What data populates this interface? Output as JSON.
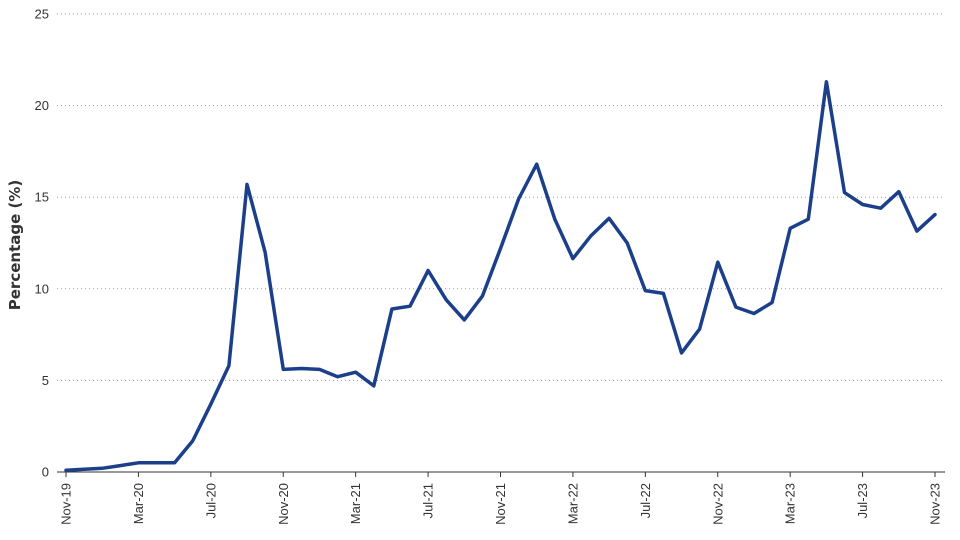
{
  "chart_data": {
    "type": "line",
    "title": "",
    "xlabel": "",
    "ylabel": "Percentage (%)",
    "ylim": [
      0,
      25
    ],
    "yticks": [
      0,
      5,
      10,
      15,
      20,
      25
    ],
    "grid": "horizontal dotted",
    "legend": "none",
    "colors": {
      "line": "#1c3f8a",
      "grid": "#9a9a9a",
      "axis": "#333333",
      "text": "#333333"
    },
    "xtick_labels": [
      "Nov-19",
      "Mar-20",
      "Jul-20",
      "Nov-20",
      "Mar-21",
      "Jul-21",
      "Nov-21",
      "Mar-22",
      "Jul-22",
      "Nov-22",
      "Mar-23",
      "Jul-23",
      "Nov-23"
    ],
    "x": [
      "Nov-19",
      "Dec-19",
      "Jan-20",
      "Feb-20",
      "Mar-20",
      "Apr-20",
      "May-20",
      "Jun-20",
      "Jul-20",
      "Aug-20",
      "Sep-20",
      "Oct-20",
      "Nov-20",
      "Dec-20",
      "Jan-21",
      "Feb-21",
      "Mar-21",
      "Apr-21",
      "May-21",
      "Jun-21",
      "Jul-21",
      "Aug-21",
      "Sep-21",
      "Oct-21",
      "Nov-21",
      "Dec-21",
      "Jan-22",
      "Feb-22",
      "Mar-22",
      "Apr-22",
      "May-22",
      "Jun-22",
      "Jul-22",
      "Aug-22",
      "Sep-22",
      "Oct-22",
      "Nov-22",
      "Dec-22",
      "Jan-23",
      "Feb-23",
      "Mar-23",
      "Apr-23",
      "May-23",
      "Jun-23",
      "Jul-23",
      "Aug-23",
      "Sep-23",
      "Oct-23",
      "Nov-23"
    ],
    "series": [
      {
        "values": [
          0.1,
          0.15,
          0.2,
          0.35,
          0.5,
          0.5,
          0.5,
          1.7,
          3.7,
          5.8,
          15.7,
          12.0,
          5.6,
          5.65,
          5.6,
          5.2,
          5.45,
          4.7,
          8.9,
          9.05,
          11.0,
          9.4,
          8.3,
          9.6,
          12.2,
          14.9,
          16.8,
          13.8,
          11.65,
          12.9,
          13.85,
          12.5,
          9.9,
          9.75,
          6.5,
          7.8,
          11.45,
          9.0,
          8.65,
          9.25,
          13.3,
          13.8,
          21.3,
          15.25,
          14.6,
          14.4,
          15.3,
          13.15,
          14.05
        ]
      }
    ]
  }
}
